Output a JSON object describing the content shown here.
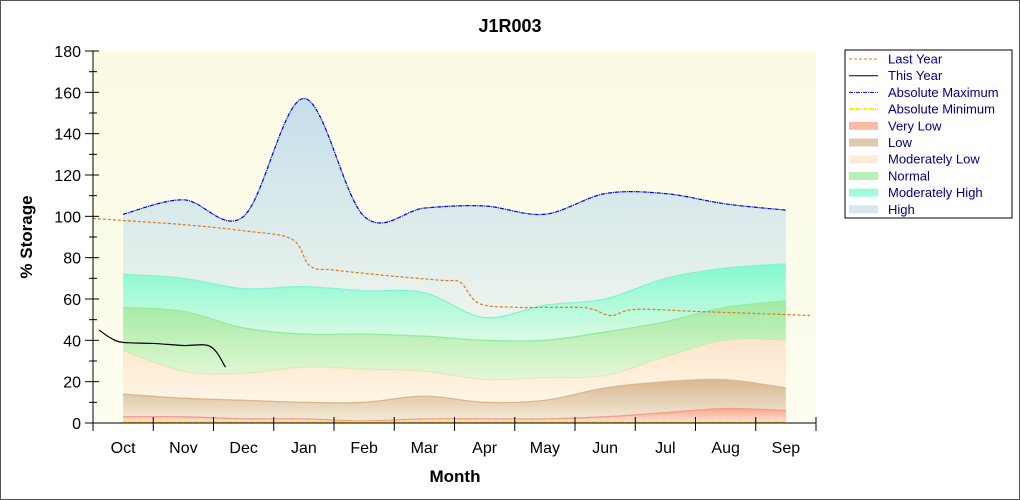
{
  "chart_data": {
    "type": "area",
    "title": "J1R003",
    "xlabel": "Month",
    "ylabel": "% Storage",
    "ylim": [
      0,
      180
    ],
    "yticks": [
      0,
      20,
      40,
      60,
      80,
      100,
      120,
      140,
      160,
      180
    ],
    "categories": [
      "Oct",
      "Nov",
      "Dec",
      "Jan",
      "Feb",
      "Mar",
      "Apr",
      "May",
      "Jun",
      "Jul",
      "Aug",
      "Sep"
    ],
    "legend_position": "right",
    "bands": [
      {
        "name": "Very Low",
        "color": "#f89c84",
        "upper": [
          3,
          3,
          2,
          2,
          1,
          2,
          2,
          2,
          3,
          5,
          7,
          6
        ]
      },
      {
        "name": "Low",
        "color": "#d4b08a",
        "upper": [
          14,
          12,
          11,
          10,
          10,
          13,
          10,
          11,
          17,
          20,
          21,
          17
        ]
      },
      {
        "name": "Moderately Low",
        "color": "#fde2c8",
        "upper": [
          35,
          25,
          24,
          27,
          26,
          25,
          21,
          22,
          23,
          32,
          40,
          40
        ]
      },
      {
        "name": "Normal",
        "color": "#98e898",
        "upper": [
          56,
          54,
          46,
          43,
          43,
          42,
          40,
          40,
          44,
          49,
          56,
          59
        ]
      },
      {
        "name": "Moderately High",
        "color": "#78f8cc",
        "upper": [
          72,
          70,
          65,
          66,
          64,
          63,
          51,
          57,
          60,
          70,
          75,
          77
        ]
      },
      {
        "name": "High",
        "color": "#c0dcec",
        "upper": [
          101,
          108,
          100,
          157,
          100,
          104,
          105,
          101,
          111,
          111,
          106,
          103
        ]
      }
    ],
    "series": [
      {
        "name": "Last Year",
        "color": "#e07820",
        "style": "dashed",
        "x": [
          0,
          0.5,
          1.5,
          2.5,
          3.3,
          3.6,
          4,
          5,
          5.8,
          6.1,
          6.4,
          7,
          8,
          8.3,
          8.6,
          9,
          10,
          11,
          11.9
        ],
        "values": [
          99,
          98,
          96,
          93,
          89,
          76,
          74,
          71,
          69,
          68,
          58,
          56,
          56,
          55,
          52,
          55,
          54,
          53,
          52
        ]
      },
      {
        "name": "This Year",
        "color": "#000000",
        "style": "solid",
        "x": [
          0.1,
          0.3,
          0.5,
          1,
          1.5,
          1.95,
          2.2
        ],
        "values": [
          45,
          41,
          39,
          38.5,
          37.5,
          37,
          27
        ]
      },
      {
        "name": "Absolute Maximum",
        "color": "#0000e0",
        "style": "dash-dot",
        "x": [
          0.5,
          1.5,
          2.5,
          3.5,
          4.5,
          5.5,
          6.5,
          7.5,
          8.5,
          9.5,
          10.5,
          11.5
        ],
        "values": [
          101,
          108,
          100,
          157,
          100,
          104,
          105,
          101,
          111,
          111,
          106,
          103
        ]
      },
      {
        "name": "Absolute Minimum",
        "color": "#f0f000",
        "style": "dash-dot",
        "x": [
          0.5,
          11.5
        ],
        "values": [
          0.5,
          0.5
        ]
      }
    ],
    "legend": [
      "Last Year",
      "This Year",
      "Absolute Maximum",
      "Absolute Minimum",
      "Very Low",
      "Low",
      "Moderately Low",
      "Normal",
      "Moderately High",
      "High"
    ]
  }
}
